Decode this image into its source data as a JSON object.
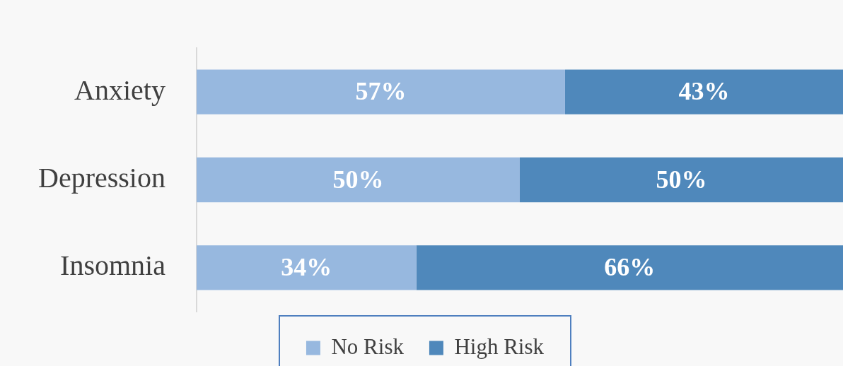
{
  "chart_data": {
    "type": "bar",
    "orientation": "horizontal",
    "stacked": true,
    "categories": [
      "Anxiety",
      "Depression",
      "Insomnia"
    ],
    "series": [
      {
        "name": "No Risk",
        "color": "#97b8df",
        "values": [
          57,
          50,
          34
        ],
        "value_labels": [
          "57%",
          "50%",
          "34%"
        ]
      },
      {
        "name": "High Risk",
        "color": "#4f88bb",
        "values": [
          43,
          50,
          66
        ],
        "value_labels": [
          "43%",
          "50%",
          "66%"
        ]
      }
    ],
    "tick_labels": "y",
    "legend": "bottom"
  }
}
